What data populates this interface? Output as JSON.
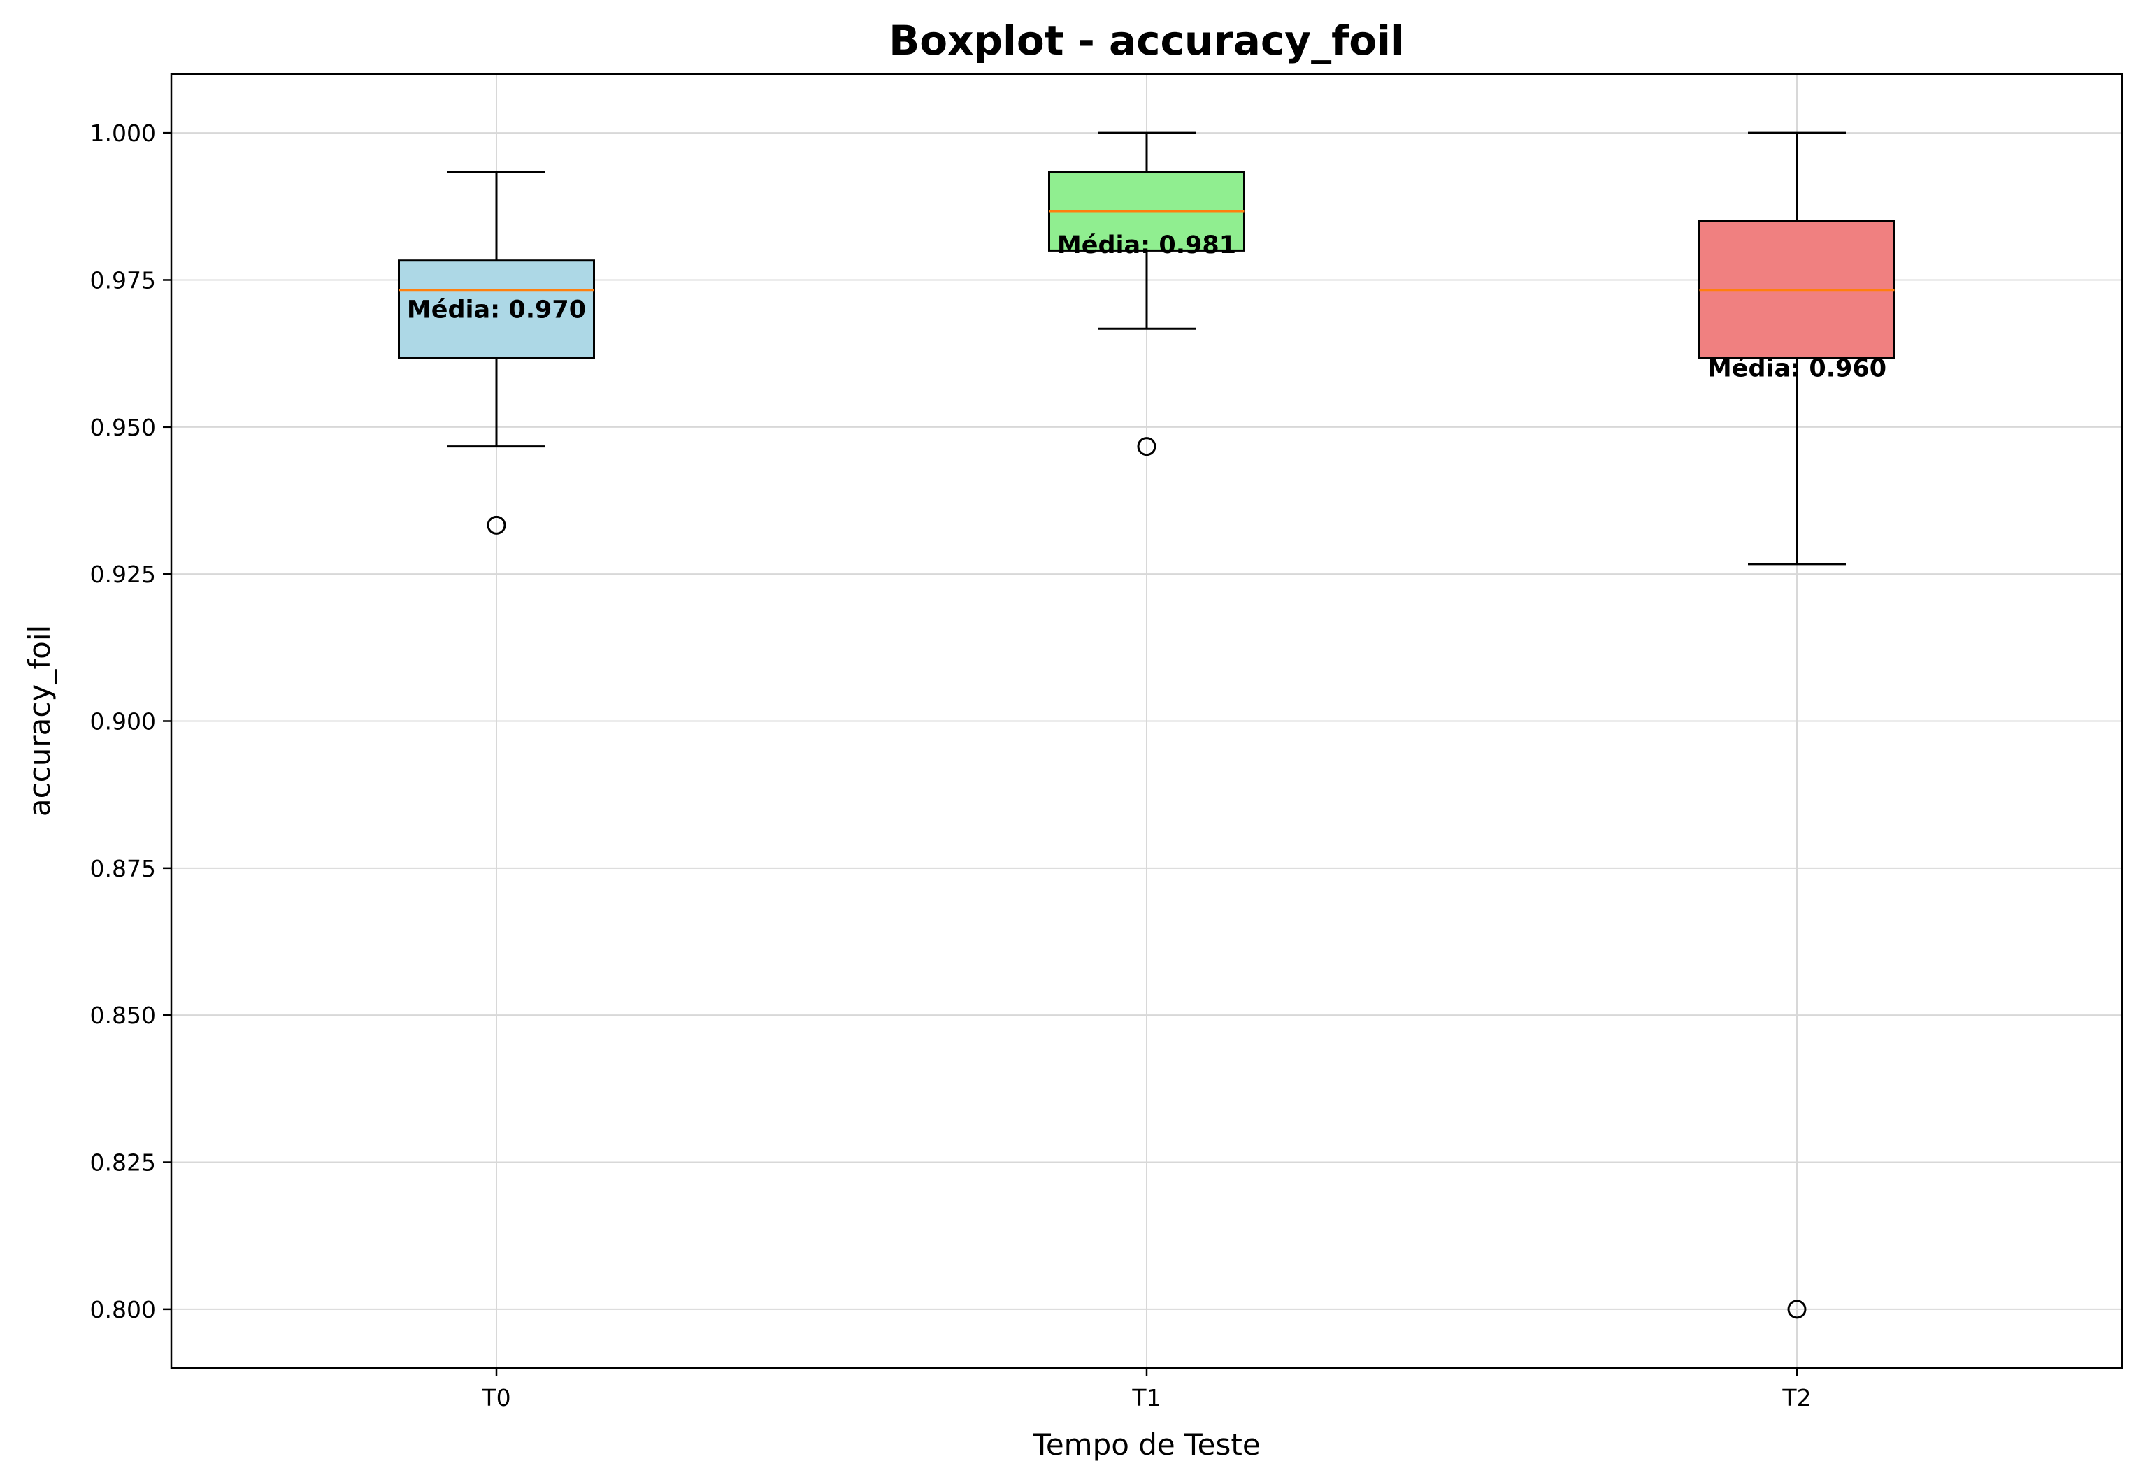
{
  "chart_data": {
    "type": "box",
    "title": "Boxplot - accuracy_foil",
    "xlabel": "Tempo de Teste",
    "ylabel": "accuracy_foil",
    "ylim": [
      0.79,
      1.01
    ],
    "yticks": [
      0.8,
      0.825,
      0.85,
      0.875,
      0.9,
      0.925,
      0.95,
      0.975,
      1.0
    ],
    "ytick_labels": [
      "0.800",
      "0.825",
      "0.850",
      "0.875",
      "0.900",
      "0.925",
      "0.950",
      "0.975",
      "1.000"
    ],
    "grid": true,
    "categories": [
      "T0",
      "T1",
      "T2"
    ],
    "boxes": [
      {
        "name": "T0",
        "color": "#add8e6",
        "whisker_low": 0.9467,
        "q1": 0.9617,
        "median": 0.9733,
        "q3": 0.9783,
        "whisker_high": 0.9933,
        "outliers": [
          0.9333
        ],
        "mean": 0.97,
        "mean_label": "Média: 0.970"
      },
      {
        "name": "T1",
        "color": "#90ee90",
        "whisker_low": 0.9667,
        "q1": 0.98,
        "median": 0.9867,
        "q3": 0.9933,
        "whisker_high": 1.0,
        "outliers": [
          0.9467
        ],
        "mean": 0.981,
        "mean_label": "Média: 0.981"
      },
      {
        "name": "T2",
        "color": "#f08080",
        "whisker_low": 0.9267,
        "q1": 0.9617,
        "median": 0.9733,
        "q3": 0.985,
        "whisker_high": 1.0,
        "outliers": [
          0.8
        ],
        "mean": 0.96,
        "mean_label": "Média: 0.960"
      }
    ]
  }
}
